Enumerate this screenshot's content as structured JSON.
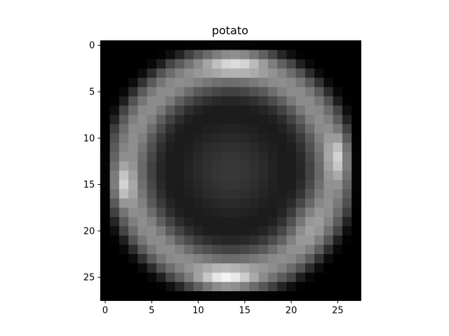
{
  "chart_data": {
    "type": "heatmap",
    "title": "potato",
    "xlabel": "",
    "ylabel": "",
    "colormap": "gray",
    "rows": 28,
    "cols": 28,
    "xlim": [
      -0.5,
      27.5
    ],
    "ylim": [
      27.5,
      -0.5
    ],
    "x_ticks": [
      0,
      5,
      10,
      15,
      20,
      25
    ],
    "y_ticks": [
      0,
      5,
      10,
      15,
      20,
      25
    ],
    "x_tick_labels": [
      "0",
      "5",
      "10",
      "15",
      "20",
      "25"
    ],
    "y_tick_labels": [
      "0",
      "5",
      "10",
      "15",
      "20",
      "25"
    ],
    "grid": false,
    "legend": "none",
    "value_range": [
      0,
      1
    ],
    "description_of_values": "brightness 0 (black) to 1 (white); bright ring around a darker center, brightest at top (row 2) and bottom (row 25), with bright spots at left (col 2) and right (col 25)"
  }
}
